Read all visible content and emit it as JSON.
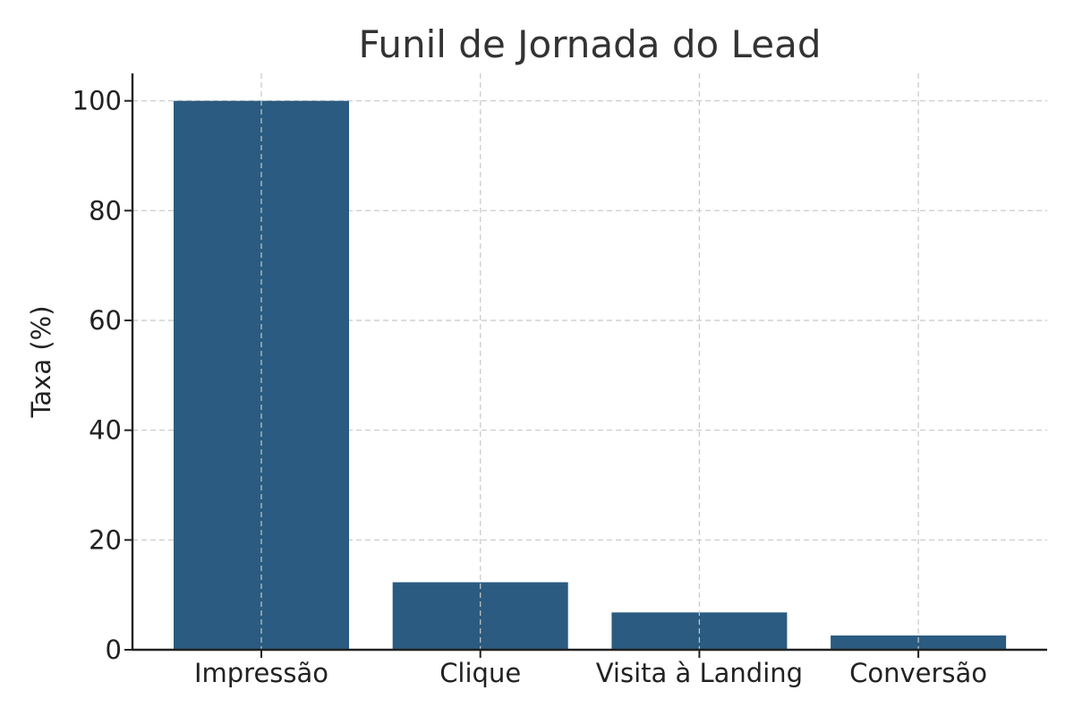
{
  "chart_data": {
    "type": "bar",
    "title": "Funil de Jornada do Lead",
    "xlabel": "",
    "ylabel": "Taxa (%)",
    "categories": [
      "Impressão",
      "Clique",
      "Visita à Landing",
      "Conversão"
    ],
    "values": [
      100,
      12.3,
      6.8,
      2.6
    ],
    "ylim": [
      0,
      105
    ],
    "yticks": [
      0,
      20,
      40,
      60,
      80,
      100
    ],
    "grid": true,
    "bar_color": "#2b5b80"
  }
}
